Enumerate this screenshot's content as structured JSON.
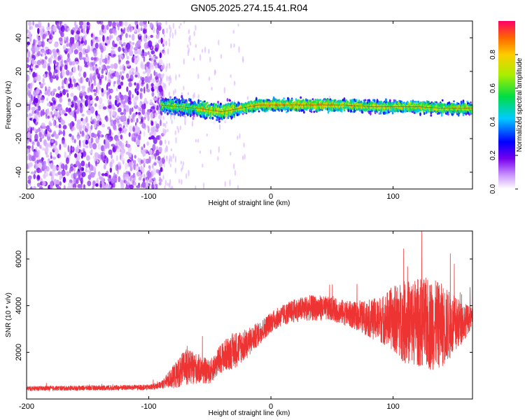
{
  "title": "GN05.2025.274.15.41.R04",
  "chart_data": [
    {
      "type": "heatmap",
      "xlabel": "Height of straight line (km)",
      "ylabel": "Frequency (Hz)",
      "xlim": [
        -200,
        165
      ],
      "ylim": [
        -50,
        50
      ],
      "x_ticks": [
        -200,
        -100,
        0,
        100
      ],
      "y_ticks": [
        -40,
        -20,
        0,
        20,
        40
      ],
      "colorbar": {
        "label": "Normalized spectral amplitude",
        "range": [
          0.0,
          1.0
        ],
        "ticks": [
          0.0,
          0.2,
          0.4,
          0.6,
          0.8
        ]
      },
      "ridge_frequency": {
        "x": [
          -90,
          -60,
          -40,
          -25,
          -10,
          0,
          20,
          40,
          60,
          80,
          100,
          120,
          140,
          165
        ],
        "y": [
          0,
          -2,
          -4,
          -2,
          0,
          0,
          0,
          0,
          0,
          -1,
          -1,
          -1,
          -2,
          -2
        ]
      }
    },
    {
      "type": "line",
      "xlabel": "Height of straight line (km)",
      "ylabel": "SNR (10 * v/v)",
      "xlim": [
        -200,
        165
      ],
      "ylim": [
        0,
        7200
      ],
      "x_ticks": [
        -200,
        -100,
        0,
        100
      ],
      "y_ticks": [
        2000,
        4000,
        6000
      ],
      "series": [
        {
          "name": "SNR",
          "color": "#ee3333",
          "envelope_x": [
            -200,
            -100,
            -90,
            -80,
            -70,
            -60,
            -50,
            -40,
            -30,
            -20,
            -10,
            0,
            10,
            20,
            30,
            40,
            50,
            60,
            70,
            80,
            90,
            100,
            110,
            120,
            130,
            140,
            150,
            165
          ],
          "envelope_mean": [
            450,
            500,
            600,
            950,
            1350,
            1300,
            1150,
            1800,
            2100,
            2350,
            2800,
            3300,
            3600,
            3800,
            3900,
            3900,
            3850,
            3700,
            3550,
            3450,
            3400,
            3450,
            3300,
            3300,
            3200,
            3150,
            3150,
            3500
          ],
          "envelope_spread": [
            100,
            120,
            150,
            500,
            800,
            650,
            500,
            650,
            800,
            650,
            500,
            450,
            450,
            500,
            550,
            550,
            500,
            550,
            600,
            800,
            1000,
            1400,
            1800,
            1900,
            2000,
            1800,
            1300,
            400
          ]
        }
      ]
    }
  ]
}
